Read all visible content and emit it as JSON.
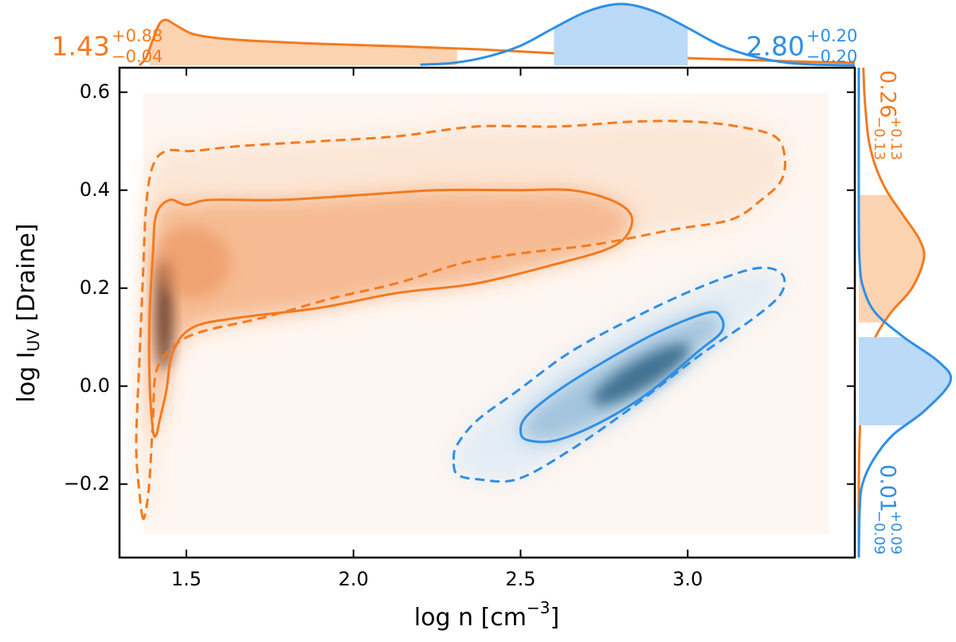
{
  "chart_data": {
    "type": "contour",
    "xlabel": {
      "text": "log n [cm",
      "sup": "−3",
      "end": "]"
    },
    "ylabel": {
      "text": "log I",
      "sub": "UV",
      "end": " [Draine]"
    },
    "xlim": [
      1.3,
      3.5
    ],
    "xticks": [
      1.5,
      {
        "value": 2,
        "label": "2.0"
      },
      2.5,
      {
        "value": 3,
        "label": "3.0"
      }
    ],
    "ylim": [
      -0.35,
      0.65
    ],
    "yticks": [
      {
        "value": -0.2,
        "label": "−0.2"
      },
      {
        "value": 0,
        "label": "0.0"
      },
      0.2,
      0.4,
      0.6
    ],
    "series": [
      {
        "color": "#f47a1f",
        "band_color": "#fbd3b1",
        "contours": [
          {
            "linestyle": "dashed",
            "x": [
              1.37,
              1.36,
              1.35,
              1.36,
              1.37,
              1.38,
              1.4,
              1.44,
              1.52,
              1.66,
              1.9,
              2.13,
              2.37,
              2.61,
              2.84,
              3.01,
              3.15,
              3.26,
              3.29,
              3.28,
              3.22,
              3.13,
              2.96,
              2.73,
              2.49,
              2.32,
              2.13,
              1.94,
              1.73,
              1.54,
              1.46,
              1.41,
              1.4,
              1.39,
              1.38
            ],
            "y": [
              -0.27,
              -0.22,
              -0.12,
              0.06,
              0.22,
              0.37,
              0.45,
              0.48,
              0.48,
              0.49,
              0.5,
              0.51,
              0.53,
              0.53,
              0.54,
              0.54,
              0.53,
              0.51,
              0.47,
              0.42,
              0.38,
              0.34,
              0.32,
              0.29,
              0.27,
              0.25,
              0.21,
              0.18,
              0.14,
              0.11,
              0.08,
              0.03,
              -0.07,
              -0.19,
              -0.25
            ]
          },
          {
            "linestyle": "solid",
            "x": [
              1.4,
              1.39,
              1.39,
              1.4,
              1.41,
              1.45,
              1.5,
              1.57,
              1.78,
              2.02,
              2.25,
              2.49,
              2.65,
              2.77,
              2.83,
              2.82,
              2.76,
              2.61,
              2.37,
              2.13,
              1.9,
              1.66,
              1.52,
              1.46,
              1.44,
              1.42,
              1.41
            ],
            "y": [
              -0.09,
              0.01,
              0.14,
              0.27,
              0.35,
              0.38,
              0.37,
              0.38,
              0.38,
              0.39,
              0.4,
              0.4,
              0.4,
              0.38,
              0.35,
              0.31,
              0.28,
              0.25,
              0.21,
              0.19,
              0.16,
              0.14,
              0.12,
              0.07,
              -0.01,
              -0.07,
              -0.1
            ]
          }
        ],
        "x_marginal": {
          "x": [
            1.36,
            1.38,
            1.4,
            1.42,
            1.44,
            1.47,
            1.52,
            1.6,
            1.7,
            1.9,
            2.14,
            2.38,
            2.62,
            2.86,
            3.1,
            3.34,
            3.5
          ],
          "density": [
            0,
            0.13,
            0.42,
            0.68,
            0.74,
            0.65,
            0.51,
            0.44,
            0.4,
            0.35,
            0.31,
            0.26,
            0.19,
            0.14,
            0.1,
            0.06,
            0.04
          ]
        },
        "x_summary": {
          "median": 1.43,
          "plus": {
            "value": 0.88,
            "label": "+0.88"
          },
          "minus": {
            "value": -0.04,
            "label": "−0.04"
          }
        },
        "y_marginal": {
          "y": [
            -0.35,
            -0.2,
            -0.1,
            0.0,
            0.05,
            0.1,
            0.15,
            0.2,
            0.26,
            0.3,
            0.35,
            0.4,
            0.45,
            0.5,
            0.55,
            0.6,
            0.65
          ],
          "density": [
            0,
            0,
            0.01,
            0.04,
            0.09,
            0.18,
            0.35,
            0.58,
            0.71,
            0.66,
            0.48,
            0.3,
            0.18,
            0.11,
            0.08,
            0.06,
            0.05
          ]
        },
        "y_summary": {
          "median": 0.26,
          "plus": {
            "value": 0.13,
            "label": "+0.13"
          },
          "minus": {
            "value": -0.13,
            "label": "−0.13"
          }
        }
      },
      {
        "color": "#2e8fe6",
        "band_color": "#badaf8",
        "contours": [
          {
            "linestyle": "dashed",
            "x": [
              2.3,
              2.31,
              2.37,
              2.49,
              2.65,
              2.84,
              3.03,
              3.2,
              3.28,
              3.28,
              3.2,
              3.03,
              2.84,
              2.65,
              2.49,
              2.37,
              2.31
            ],
            "y": [
              -0.15,
              -0.12,
              -0.07,
              -0.01,
              0.07,
              0.14,
              0.2,
              0.24,
              0.23,
              0.19,
              0.14,
              0.06,
              -0.04,
              -0.13,
              -0.19,
              -0.19,
              -0.18
            ]
          },
          {
            "linestyle": "solid",
            "x": [
              2.5,
              2.52,
              2.61,
              2.75,
              2.91,
              3.06,
              3.1,
              3.1,
              3.03,
              2.89,
              2.75,
              2.61,
              2.52
            ],
            "y": [
              -0.09,
              -0.06,
              -0.01,
              0.05,
              0.11,
              0.15,
              0.14,
              0.11,
              0.07,
              -0.01,
              -0.07,
              -0.11,
              -0.11
            ]
          }
        ],
        "x_marginal": {
          "x": [
            2.2,
            2.3,
            2.4,
            2.5,
            2.6,
            2.7,
            2.8,
            2.9,
            3.0,
            3.1,
            3.2,
            3.3,
            3.4,
            3.5
          ],
          "density": [
            0.01,
            0.04,
            0.14,
            0.32,
            0.61,
            0.88,
            1,
            0.88,
            0.61,
            0.32,
            0.14,
            0.04,
            0.01,
            0
          ]
        },
        "x_summary": {
          "median": {
            "value": 2.8,
            "label": "2.80"
          },
          "plus": {
            "value": 0.2,
            "label": "+0.20"
          },
          "minus": {
            "value": -0.2,
            "label": "−0.20"
          }
        },
        "y_marginal": {
          "y": [
            -0.35,
            -0.25,
            -0.2,
            -0.15,
            -0.1,
            -0.05,
            0.01,
            0.05,
            0.1,
            0.15,
            0.2,
            0.25,
            0.35,
            0.65
          ],
          "density": [
            0,
            0.01,
            0.04,
            0.16,
            0.37,
            0.72,
            1,
            0.87,
            0.49,
            0.18,
            0.05,
            0.01,
            0,
            0
          ]
        },
        "y_summary": {
          "median": 0.01,
          "plus": {
            "value": 0.09,
            "label": "+0.09"
          },
          "minus": {
            "value": -0.09,
            "label": "−0.09"
          }
        }
      }
    ]
  }
}
